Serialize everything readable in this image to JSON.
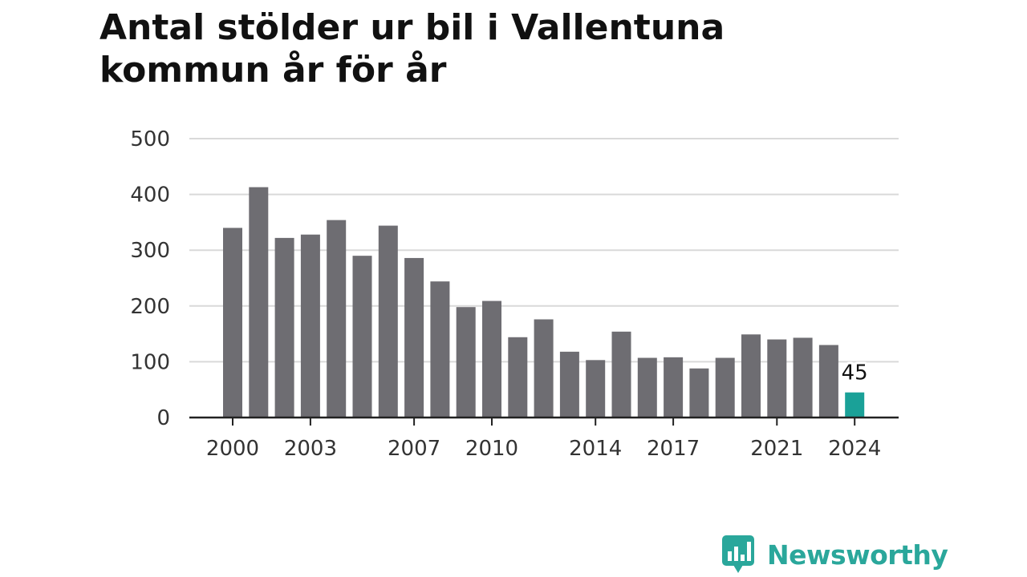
{
  "title": "Antal stölder ur bil i Vallentuna kommun år för år",
  "brand": {
    "name": "Newsworthy",
    "color": "#2aa79b",
    "icon": "bar-chart-speech-bubble-icon"
  },
  "chart_data": {
    "type": "bar",
    "x": [
      2000,
      2001,
      2002,
      2003,
      2004,
      2005,
      2006,
      2007,
      2008,
      2009,
      2010,
      2011,
      2012,
      2013,
      2014,
      2015,
      2016,
      2017,
      2018,
      2019,
      2020,
      2021,
      2022,
      2023,
      2024
    ],
    "values": [
      340,
      413,
      322,
      328,
      354,
      290,
      344,
      286,
      244,
      198,
      209,
      144,
      176,
      118,
      103,
      154,
      107,
      108,
      88,
      107,
      149,
      140,
      143,
      130,
      45
    ],
    "x_ticks": [
      "2000",
      "2003",
      "2007",
      "2010",
      "2014",
      "2017",
      "2021",
      "2024"
    ],
    "y_ticks": [
      0,
      100,
      200,
      300,
      400,
      500
    ],
    "ylim": [
      0,
      500
    ],
    "highlight": {
      "x": 2024,
      "label": "45"
    },
    "colors": {
      "bar": "#6e6d72",
      "highlight": "#1aa198",
      "grid": "#d9d9d9",
      "axis": "#222222"
    },
    "grid": true,
    "legend": "none",
    "xlabel": "",
    "ylabel": ""
  }
}
